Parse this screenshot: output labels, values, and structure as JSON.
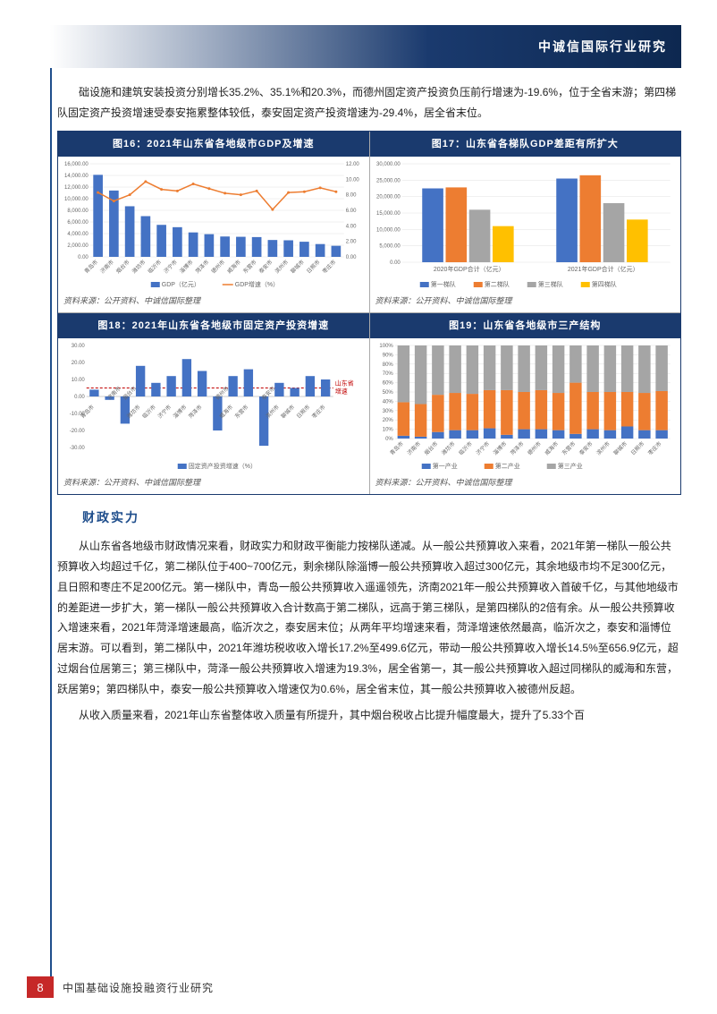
{
  "header": {
    "title": "中诚信国际行业研究"
  },
  "intro_para": "础设施和建筑安装投资分别增长35.2%、35.1%和20.3%，而德州固定资产投资负压前行增速为-19.6%，位于全省末游；第四梯队固定资产投资增速受泰安拖累整体较低，泰安固定资产投资增速为-29.4%，居全省末位。",
  "chart16": {
    "title": "图16：2021年山东省各地级市GDP及增速",
    "type": "bar+line",
    "cities": [
      "青岛市",
      "济南市",
      "烟台市",
      "潍坊市",
      "临沂市",
      "济宁市",
      "淄博市",
      "菏泽市",
      "德州市",
      "威海市",
      "东营市",
      "泰安市",
      "滨州市",
      "聊城市",
      "日照市",
      "枣庄市"
    ],
    "gdp_values": [
      14100,
      11400,
      8700,
      7000,
      5500,
      5100,
      4200,
      3900,
      3500,
      3450,
      3400,
      2900,
      2850,
      2600,
      2200,
      1900
    ],
    "gdp_growth": [
      8.3,
      7.2,
      8.0,
      9.7,
      8.7,
      8.5,
      9.4,
      8.8,
      8.2,
      8.0,
      8.5,
      6.1,
      8.3,
      8.4,
      8.9,
      8.4
    ],
    "y1_lim": [
      0,
      16000
    ],
    "y1_step": 2000,
    "y2_lim": [
      0,
      12
    ],
    "y2_step": 2,
    "bar_color": "#4472c4",
    "line_color": "#ed7d31",
    "legend": [
      "GDP（亿元）",
      "GDP增速（%）"
    ],
    "bg": "#ffffff",
    "grid_color": "#e0e0e0",
    "source": "资料来源：公开资料、中诚信国际整理"
  },
  "chart17": {
    "title": "图17：山东省各梯队GDP差距有所扩大",
    "type": "grouped-bar",
    "categories": [
      "2020年GDP合计（亿元）",
      "2021年GDP合计（亿元）"
    ],
    "series": [
      {
        "name": "第一梯队",
        "values": [
          22500,
          25500
        ],
        "color": "#4472c4"
      },
      {
        "name": "第二梯队",
        "values": [
          22800,
          26500
        ],
        "color": "#ed7d31"
      },
      {
        "name": "第三梯队",
        "values": [
          16000,
          18000
        ],
        "color": "#a5a5a5"
      },
      {
        "name": "第四梯队",
        "values": [
          11000,
          13000
        ],
        "color": "#ffc000"
      }
    ],
    "ylim": [
      0,
      30000
    ],
    "ystep": 5000,
    "bg": "#ffffff",
    "source": "资料来源：公开资料、中诚信国际整理"
  },
  "chart18": {
    "title": "图18：2021年山东省各地级市固定资产投资增速",
    "type": "bar",
    "cities": [
      "青岛市",
      "济南市",
      "烟台市",
      "潍坊市",
      "临沂市",
      "济宁市",
      "淄博市",
      "菏泽市",
      "德州市",
      "威海市",
      "东营市",
      "泰安市",
      "滨州市",
      "聊城市",
      "日照市",
      "枣庄市"
    ],
    "values": [
      4,
      -2,
      -16,
      18,
      8,
      12,
      22,
      15,
      -20,
      12,
      16,
      -29,
      8,
      5,
      12,
      10
    ],
    "ref_line_label": "山东省增速",
    "ref_line_value": 5,
    "ylim": [
      -30,
      30
    ],
    "ystep": 10,
    "bar_color": "#4472c4",
    "ref_color": "#c00000",
    "legend": [
      "固定资产投资增速（%）"
    ],
    "bg": "#ffffff",
    "source": "资料来源：公开资料、中诚信国际整理"
  },
  "chart19": {
    "title": "图19：山东省各地级市三产结构",
    "type": "stacked-bar",
    "cities": [
      "青岛市",
      "济南市",
      "烟台市",
      "潍坊市",
      "临沂市",
      "济宁市",
      "淄博市",
      "菏泽市",
      "德州市",
      "威海市",
      "东营市",
      "泰安市",
      "滨州市",
      "聊城市",
      "日照市",
      "枣庄市"
    ],
    "series": [
      {
        "name": "第一产业",
        "color": "#4472c4",
        "values": [
          3,
          2,
          7,
          9,
          9,
          11,
          4,
          10,
          10,
          9,
          5,
          10,
          9,
          13,
          9,
          9
        ]
      },
      {
        "name": "第二产业",
        "color": "#ed7d31",
        "values": [
          36,
          35,
          40,
          40,
          39,
          41,
          48,
          40,
          42,
          40,
          55,
          40,
          41,
          37,
          40,
          42
        ]
      },
      {
        "name": "第三产业",
        "color": "#a5a5a5",
        "values": [
          61,
          63,
          53,
          51,
          52,
          48,
          48,
          50,
          48,
          51,
          40,
          50,
          50,
          50,
          51,
          49
        ]
      }
    ],
    "ylim": [
      0,
      100
    ],
    "ystep": 10,
    "bg": "#ffffff",
    "source": "资料来源：公开资料、中诚信国际整理"
  },
  "section_heading": "财政实力",
  "body_p1": "从山东省各地级市财政情况来看，财政实力和财政平衡能力按梯队递减。从一般公共预算收入来看，2021年第一梯队一般公共预算收入均超过千亿，第二梯队位于400~700亿元，剩余梯队除淄博一般公共预算收入超过300亿元，其余地级市均不足300亿元，且日照和枣庄不足200亿元。第一梯队中，青岛一般公共预算收入遥遥领先，济南2021年一般公共预算收入首破千亿，与其他地级市的差距进一步扩大，第一梯队一般公共预算收入合计数高于第二梯队，远高于第三梯队，是第四梯队的2倍有余。从一般公共预算收入增速来看，2021年菏泽增速最高，临沂次之，泰安居末位；从两年平均增速来看，菏泽增速依然最高，临沂次之，泰安和淄博位居末游。可以看到，第二梯队中，2021年潍坊税收收入增长17.2%至499.6亿元，带动一般公共预算收入增长14.5%至656.9亿元，超过烟台位居第三；第三梯队中，菏泽一般公共预算收入增速为19.3%，居全省第一，其一般公共预算收入超过同梯队的威海和东营，跃居第9；第四梯队中，泰安一般公共预算收入增速仅为0.6%，居全省末位，其一般公共预算收入被德州反超。",
  "body_p2": "从收入质量来看，2021年山东省整体收入质量有所提升，其中烟台税收占比提升幅度最大，提升了5.33个百",
  "footer": {
    "page": "8",
    "text": "中国基础设施投融资行业研究"
  }
}
